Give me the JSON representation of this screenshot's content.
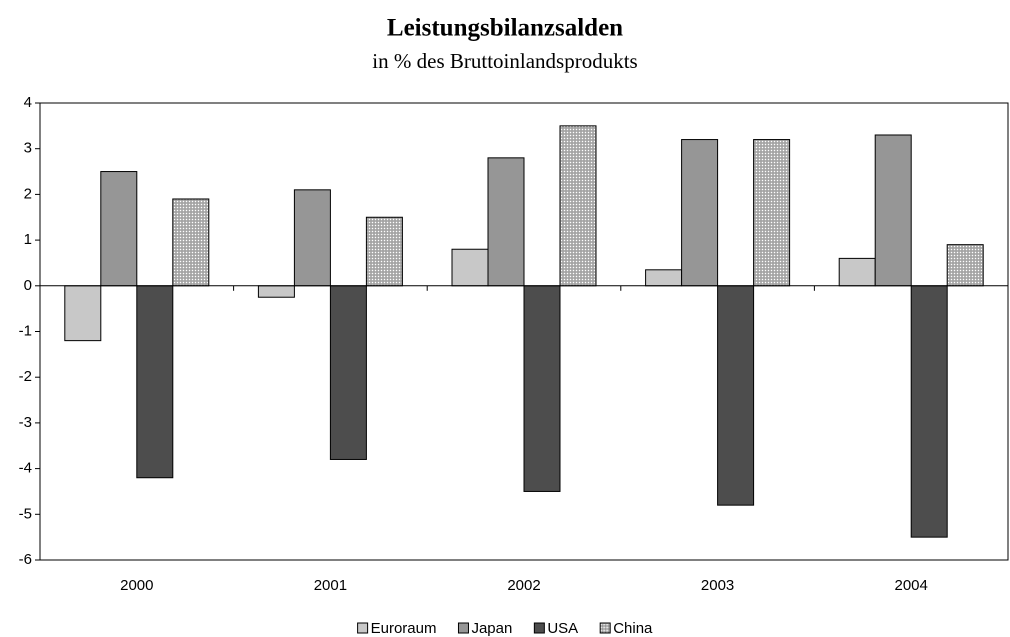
{
  "chart_data": {
    "type": "bar",
    "title": "Leistungsbilanzsalden",
    "subtitle": "in % des Bruttoinlandsprodukts",
    "categories": [
      "2000",
      "2001",
      "2002",
      "2003",
      "2004"
    ],
    "series": [
      {
        "name": "Euroraum",
        "color": "#c8c8c8",
        "values": [
          -1.2,
          -0.25,
          0.8,
          0.35,
          0.6
        ]
      },
      {
        "name": "Japan",
        "color": "#969696",
        "values": [
          2.5,
          2.1,
          2.8,
          3.2,
          3.3
        ]
      },
      {
        "name": "USA",
        "color": "#4d4d4d",
        "values": [
          -4.2,
          -3.8,
          -4.5,
          -4.8,
          -5.5
        ]
      },
      {
        "name": "China",
        "color": "#b4b4b4",
        "pattern": "dots",
        "values": [
          1.9,
          1.5,
          3.5,
          3.2,
          0.9
        ]
      }
    ],
    "ylim": [
      -6,
      4
    ],
    "yticks": [
      -6,
      -5,
      -4,
      -3,
      -2,
      -1,
      0,
      1,
      2,
      3,
      4
    ],
    "grid": false,
    "legend": "bottom"
  }
}
